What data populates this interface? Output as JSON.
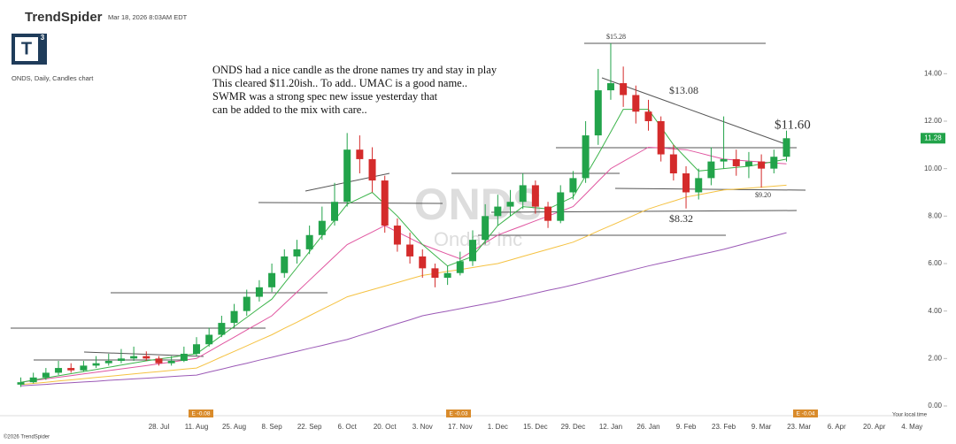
{
  "header": {
    "brand": "TrendSpider",
    "timestamp": "Mar 18, 2026 8:03AM EDT",
    "logo": "T",
    "logo_sup": "3"
  },
  "footer": {
    "copyright": "©2026 TrendSpider",
    "local_time": "Your local time"
  },
  "chart_data": {
    "type": "candlestick",
    "title": "ONDS, Daily, Candles chart",
    "watermark": "ONDS",
    "watermark_sub": "Ondas Inc",
    "note": [
      "ONDS had a nice candle as the drone names try and stay in play",
      "This cleared $11.20ish.. To add.. UMAC is a good name..",
      "SWMR was a strong spec new issue yesterday that",
      "can be added to the mix with care.."
    ],
    "annotations": [
      "$15.28",
      "$13.08",
      "$11.60",
      "$9.20",
      "$8.32"
    ],
    "events": [
      "E -0.08",
      "E -0.03",
      "E -0.04"
    ],
    "last_price": 11.28,
    "up_color": "#22a34a",
    "down_color": "#d42b2b",
    "categories": [
      null,
      null,
      null,
      null,
      null,
      null,
      null,
      null,
      null,
      null,
      null,
      "28. Jul",
      null,
      null,
      "11. Aug",
      null,
      null,
      "25. Aug",
      null,
      null,
      "8. Sep",
      null,
      null,
      "22. Sep",
      null,
      null,
      "6. Oct",
      null,
      null,
      "20. Oct",
      null,
      null,
      "3. Nov",
      null,
      null,
      "17. Nov",
      null,
      null,
      "1. Dec",
      null,
      null,
      "15. Dec",
      null,
      null,
      "29. Dec",
      null,
      null,
      "12. Jan",
      null,
      null,
      "26. Jan",
      null,
      null,
      "9. Feb",
      null,
      null,
      "23. Feb",
      null,
      null,
      "9. Mar",
      null,
      null,
      "23. Mar",
      null,
      null,
      "6. Apr",
      null,
      null,
      "20. Apr",
      null,
      null,
      "4. May"
    ],
    "open": [
      0.9,
      1.0,
      1.2,
      1.4,
      1.6,
      1.5,
      1.7,
      1.8,
      1.9,
      2.0,
      2.1,
      2.0,
      1.8,
      1.9,
      2.2,
      2.6,
      3.0,
      3.5,
      4.0,
      4.6,
      5.0,
      5.6,
      6.3,
      6.6,
      7.2,
      7.8,
      8.6,
      10.8,
      10.4,
      9.5,
      7.6,
      6.8,
      6.3,
      5.8,
      5.4,
      5.6,
      6.1,
      7.0,
      8.0,
      8.4,
      8.6,
      9.3,
      8.4,
      7.8,
      9.0,
      9.6,
      11.4,
      13.3,
      13.6,
      13.1,
      12.4,
      12.0,
      10.6,
      9.8,
      9.0,
      9.6,
      10.3,
      10.4,
      10.1,
      10.3,
      10.0,
      10.5,
      null,
      null,
      null,
      null,
      null,
      null,
      null,
      null,
      null,
      null
    ],
    "high": [
      1.2,
      1.4,
      1.6,
      1.9,
      1.8,
      1.9,
      2.1,
      2.2,
      2.4,
      2.5,
      2.3,
      2.1,
      2.1,
      2.5,
      2.9,
      3.3,
      3.8,
      4.3,
      4.9,
      5.3,
      6.0,
      6.6,
      7.0,
      7.6,
      8.4,
      9.4,
      11.5,
      11.4,
      10.9,
      9.7,
      7.9,
      7.3,
      6.6,
      6.0,
      5.9,
      6.5,
      7.4,
      8.5,
      8.9,
      9.1,
      9.8,
      9.5,
      8.6,
      9.3,
      9.9,
      12.0,
      14.2,
      15.28,
      14.3,
      13.5,
      12.9,
      12.2,
      11.0,
      10.1,
      10.0,
      10.9,
      12.2,
      10.8,
      10.7,
      10.6,
      10.8,
      11.6,
      null,
      null,
      null,
      null,
      null,
      null,
      null,
      null,
      null,
      null
    ],
    "low": [
      0.8,
      0.95,
      1.1,
      1.3,
      1.4,
      1.45,
      1.6,
      1.7,
      1.8,
      1.9,
      1.9,
      1.7,
      1.7,
      1.85,
      2.1,
      2.5,
      2.9,
      3.3,
      3.8,
      4.4,
      4.8,
      5.4,
      6.0,
      6.4,
      7.0,
      7.6,
      8.4,
      9.8,
      9.0,
      7.3,
      6.5,
      6.0,
      5.4,
      5.0,
      5.1,
      5.5,
      5.9,
      6.8,
      7.6,
      8.0,
      8.3,
      8.1,
      7.5,
      7.7,
      8.7,
      9.4,
      11.0,
      12.9,
      12.6,
      11.9,
      11.6,
      10.3,
      9.5,
      8.32,
      8.7,
      9.3,
      10.0,
      9.7,
      9.6,
      9.2,
      9.8,
      10.3,
      null,
      null,
      null,
      null,
      null,
      null,
      null,
      null,
      null,
      null
    ],
    "close": [
      1.0,
      1.2,
      1.4,
      1.6,
      1.5,
      1.7,
      1.8,
      1.9,
      2.0,
      2.1,
      2.0,
      1.8,
      1.9,
      2.2,
      2.6,
      3.0,
      3.5,
      4.0,
      4.6,
      5.0,
      5.6,
      6.3,
      6.6,
      7.2,
      7.8,
      8.6,
      10.8,
      10.4,
      9.5,
      7.6,
      6.8,
      6.3,
      5.8,
      5.4,
      5.6,
      6.1,
      7.0,
      8.0,
      8.4,
      8.6,
      9.3,
      8.4,
      7.8,
      9.0,
      9.6,
      11.4,
      13.3,
      13.6,
      13.1,
      12.4,
      12.0,
      10.6,
      9.8,
      9.0,
      9.6,
      10.3,
      10.4,
      10.1,
      10.3,
      10.0,
      10.5,
      11.28,
      null,
      null,
      null,
      null,
      null,
      null,
      null,
      null,
      null,
      null
    ],
    "series": [
      {
        "color": "#9b59b6",
        "values": [
          0.85,
          0.88,
          0.91,
          0.95,
          0.98,
          1.01,
          1.04,
          1.08,
          1.11,
          1.14,
          1.17,
          1.2,
          1.24,
          1.27,
          1.3,
          1.43,
          1.55,
          1.68,
          1.8,
          1.93,
          2.05,
          2.18,
          2.3,
          2.43,
          2.55,
          2.68,
          2.8,
          2.97,
          3.13,
          3.3,
          3.47,
          3.63,
          3.8,
          3.9,
          4.0,
          4.1,
          4.2,
          4.3,
          4.4,
          4.52,
          4.63,
          4.75,
          4.87,
          4.98,
          5.1,
          5.23,
          5.37,
          5.5,
          5.63,
          5.77,
          5.9,
          6.02,
          6.13,
          6.25,
          6.37,
          6.48,
          6.6,
          6.74,
          6.88,
          7.02,
          7.16,
          7.3,
          null,
          null,
          null,
          null,
          null,
          null,
          null,
          null,
          null,
          null
        ]
      },
      {
        "color": "#f5c242",
        "values": [
          0.9,
          0.95,
          1.0,
          1.05,
          1.1,
          1.15,
          1.2,
          1.25,
          1.3,
          1.35,
          1.4,
          1.45,
          1.5,
          1.55,
          1.6,
          1.83,
          2.07,
          2.3,
          2.53,
          2.77,
          3.0,
          3.27,
          3.53,
          3.8,
          4.07,
          4.33,
          4.6,
          4.75,
          4.9,
          5.05,
          5.2,
          5.35,
          5.5,
          5.58,
          5.67,
          5.75,
          5.83,
          5.92,
          6.0,
          6.15,
          6.3,
          6.45,
          6.6,
          6.75,
          6.9,
          7.13,
          7.37,
          7.6,
          7.83,
          8.07,
          8.3,
          8.47,
          8.63,
          8.8,
          8.9,
          9.0,
          9.1,
          9.14,
          9.18,
          9.22,
          9.26,
          9.3,
          null,
          null,
          null,
          null,
          null,
          null,
          null,
          null,
          null,
          null
        ]
      },
      {
        "color": "#e056a0",
        "values": [
          1.0,
          1.07,
          1.14,
          1.21,
          1.28,
          1.35,
          1.42,
          1.49,
          1.56,
          1.63,
          1.7,
          1.78,
          1.85,
          1.93,
          2.0,
          2.3,
          2.6,
          2.9,
          3.2,
          3.5,
          3.8,
          4.3,
          4.8,
          5.3,
          5.8,
          6.3,
          6.8,
          7.07,
          7.33,
          7.6,
          7.33,
          7.07,
          6.8,
          6.6,
          6.4,
          6.2,
          6.53,
          6.87,
          7.2,
          7.4,
          7.6,
          7.8,
          8.0,
          8.2,
          8.4,
          8.93,
          9.47,
          10.0,
          10.3,
          10.6,
          10.9,
          10.87,
          10.83,
          10.8,
          10.67,
          10.53,
          10.4,
          10.36,
          10.32,
          10.28,
          10.24,
          10.2,
          null,
          null,
          null,
          null,
          null,
          null,
          null,
          null,
          null,
          null
        ]
      },
      {
        "color": "#3cb44b",
        "values": [
          1.0,
          1.09,
          1.18,
          1.27,
          1.36,
          1.45,
          1.54,
          1.63,
          1.72,
          1.81,
          1.9,
          1.98,
          2.05,
          2.13,
          2.2,
          2.58,
          2.97,
          3.35,
          3.73,
          4.12,
          4.5,
          5.17,
          5.83,
          6.5,
          7.17,
          7.83,
          8.5,
          8.75,
          9.0,
          8.5,
          8.0,
          7.4,
          6.8,
          6.35,
          5.9,
          6.1,
          6.3,
          6.95,
          7.6,
          8.0,
          8.4,
          8.35,
          8.3,
          8.55,
          8.8,
          9.7,
          10.6,
          11.55,
          12.5,
          12.5,
          12.5,
          11.75,
          11.0,
          10.45,
          9.9,
          9.95,
          10.0,
          10.05,
          10.1,
          10.2,
          10.3,
          10.4,
          null,
          null,
          null,
          null,
          null,
          null,
          null,
          null,
          null,
          null
        ]
      }
    ],
    "ylim": [
      0,
      15.8
    ],
    "yticks": [
      {
        "value": 0,
        "label": "0.00"
      },
      {
        "value": 2,
        "label": "2.00"
      },
      {
        "value": 4,
        "label": "4.00"
      },
      {
        "value": 6,
        "label": "6.00"
      },
      {
        "value": 8,
        "label": "8.00"
      },
      {
        "value": 10,
        "label": "10.00"
      },
      {
        "value": 12,
        "label": "12.00"
      },
      {
        "value": 14,
        "label": "14.00"
      }
    ],
    "grid": false
  }
}
